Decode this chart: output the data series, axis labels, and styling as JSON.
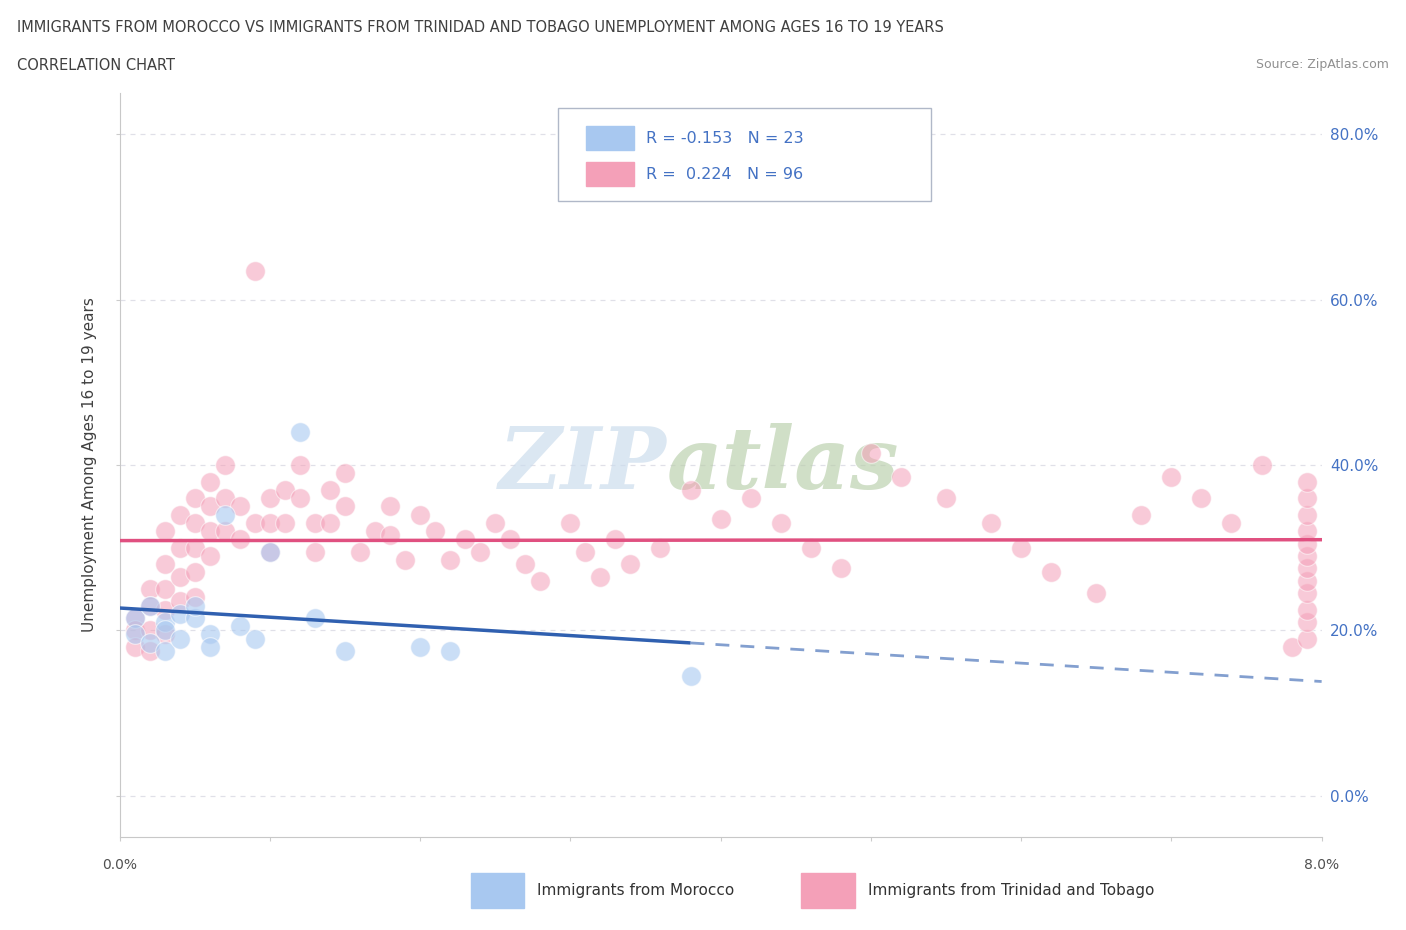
{
  "title_line1": "IMMIGRANTS FROM MOROCCO VS IMMIGRANTS FROM TRINIDAD AND TOBAGO UNEMPLOYMENT AMONG AGES 16 TO 19 YEARS",
  "title_line2": "CORRELATION CHART",
  "source_text": "Source: ZipAtlas.com",
  "ylabel": "Unemployment Among Ages 16 to 19 years",
  "xlim": [
    0.0,
    0.08
  ],
  "ylim": [
    -0.05,
    0.85
  ],
  "yticks": [
    0.0,
    0.2,
    0.4,
    0.6,
    0.8
  ],
  "ytick_labels": [
    "0.0%",
    "20.0%",
    "40.0%",
    "60.0%",
    "80.0%"
  ],
  "morocco_R": -0.153,
  "morocco_N": 23,
  "tt_R": 0.224,
  "tt_N": 96,
  "morocco_color": "#a8c8f0",
  "tt_color": "#f4a0b8",
  "morocco_line_color": "#3060b0",
  "tt_line_color": "#e05080",
  "grid_color": "#e0e0e8",
  "legend_text_color": "#4472c4",
  "title_color": "#404040",
  "source_color": "#909090",
  "right_label_color": "#4472c4",
  "bottom_label_color": "#505050",
  "morocco_x": [
    0.001,
    0.001,
    0.002,
    0.002,
    0.003,
    0.003,
    0.003,
    0.004,
    0.004,
    0.005,
    0.005,
    0.006,
    0.006,
    0.007,
    0.008,
    0.009,
    0.01,
    0.012,
    0.013,
    0.015,
    0.02,
    0.022,
    0.038
  ],
  "morocco_y": [
    0.215,
    0.195,
    0.23,
    0.185,
    0.21,
    0.2,
    0.175,
    0.22,
    0.19,
    0.215,
    0.23,
    0.195,
    0.18,
    0.34,
    0.205,
    0.19,
    0.295,
    0.44,
    0.215,
    0.175,
    0.18,
    0.175,
    0.145
  ],
  "tt_x": [
    0.001,
    0.001,
    0.001,
    0.002,
    0.002,
    0.002,
    0.002,
    0.003,
    0.003,
    0.003,
    0.003,
    0.003,
    0.004,
    0.004,
    0.004,
    0.004,
    0.005,
    0.005,
    0.005,
    0.005,
    0.005,
    0.006,
    0.006,
    0.006,
    0.006,
    0.007,
    0.007,
    0.007,
    0.008,
    0.008,
    0.009,
    0.009,
    0.01,
    0.01,
    0.01,
    0.011,
    0.011,
    0.012,
    0.012,
    0.013,
    0.013,
    0.014,
    0.014,
    0.015,
    0.015,
    0.016,
    0.017,
    0.018,
    0.018,
    0.019,
    0.02,
    0.021,
    0.022,
    0.023,
    0.024,
    0.025,
    0.026,
    0.027,
    0.028,
    0.03,
    0.031,
    0.032,
    0.033,
    0.034,
    0.036,
    0.038,
    0.04,
    0.042,
    0.044,
    0.046,
    0.048,
    0.05,
    0.052,
    0.055,
    0.058,
    0.06,
    0.062,
    0.065,
    0.068,
    0.07,
    0.072,
    0.074,
    0.076,
    0.078,
    0.079,
    0.079,
    0.079,
    0.079,
    0.079,
    0.079,
    0.079,
    0.079,
    0.079,
    0.079,
    0.079,
    0.079
  ],
  "tt_y": [
    0.215,
    0.2,
    0.18,
    0.25,
    0.23,
    0.2,
    0.175,
    0.32,
    0.28,
    0.25,
    0.225,
    0.195,
    0.34,
    0.3,
    0.265,
    0.235,
    0.36,
    0.33,
    0.3,
    0.27,
    0.24,
    0.38,
    0.35,
    0.32,
    0.29,
    0.4,
    0.36,
    0.32,
    0.35,
    0.31,
    0.635,
    0.33,
    0.36,
    0.33,
    0.295,
    0.37,
    0.33,
    0.4,
    0.36,
    0.33,
    0.295,
    0.37,
    0.33,
    0.39,
    0.35,
    0.295,
    0.32,
    0.35,
    0.315,
    0.285,
    0.34,
    0.32,
    0.285,
    0.31,
    0.295,
    0.33,
    0.31,
    0.28,
    0.26,
    0.33,
    0.295,
    0.265,
    0.31,
    0.28,
    0.3,
    0.37,
    0.335,
    0.36,
    0.33,
    0.3,
    0.275,
    0.415,
    0.385,
    0.36,
    0.33,
    0.3,
    0.27,
    0.245,
    0.34,
    0.385,
    0.36,
    0.33,
    0.4,
    0.18,
    0.19,
    0.21,
    0.225,
    0.245,
    0.26,
    0.275,
    0.29,
    0.305,
    0.32,
    0.34,
    0.36,
    0.38
  ]
}
